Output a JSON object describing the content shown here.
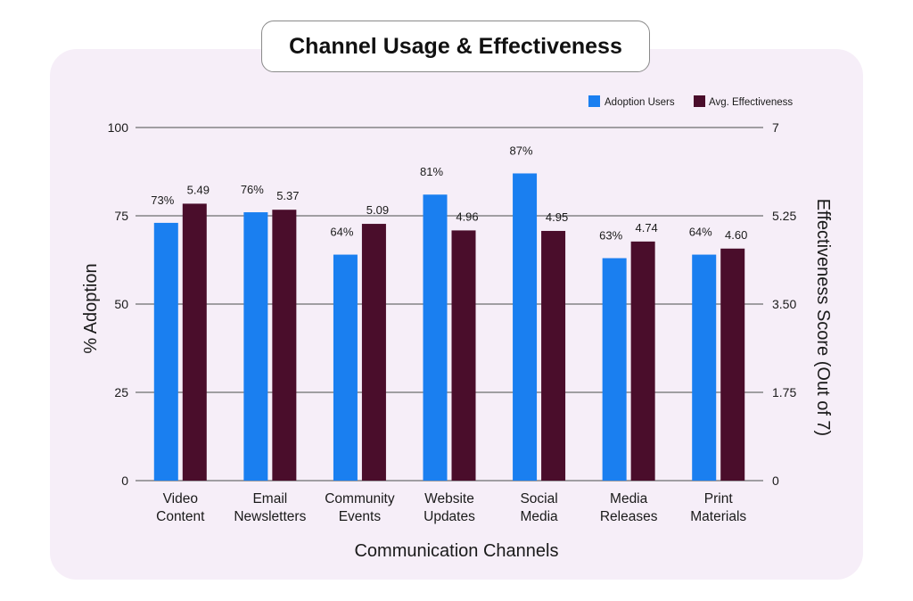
{
  "title": "Channel Usage & Effectiveness",
  "colors": {
    "adoption": "#1a7ff0",
    "effectiveness": "#4a0d2b",
    "panel": "#f6eef8"
  },
  "chart_data": {
    "type": "bar",
    "title": "Channel Usage & Effectiveness",
    "xlabel": "Communication Channels",
    "ylabel": "% Adoption",
    "y2label": "Effectiveness Score (Out of 7)",
    "categories": [
      [
        "Video",
        "Content"
      ],
      [
        "Email",
        "Newsletters"
      ],
      [
        "Community",
        "Events"
      ],
      [
        "Website",
        "Updates"
      ],
      [
        "Social",
        "Media"
      ],
      [
        "Media",
        "Releases"
      ],
      [
        "Print",
        "Materials"
      ]
    ],
    "series": [
      {
        "name": "Adoption Users",
        "axis": "left",
        "values": [
          73,
          76,
          64,
          81,
          87,
          63,
          64
        ],
        "labels": [
          "73%",
          "76%",
          "64%",
          "81%",
          "87%",
          "63%",
          "64%"
        ]
      },
      {
        "name": "Avg. Effectiveness",
        "axis": "right",
        "values": [
          5.49,
          5.37,
          5.09,
          4.96,
          4.95,
          4.74,
          4.6
        ],
        "labels": [
          "5.49",
          "5.37",
          "5.09",
          "4.96",
          "4.95",
          "4.74",
          "4.60"
        ]
      }
    ],
    "ylim": [
      0,
      100
    ],
    "y2lim": [
      0,
      7
    ],
    "yticks": [
      "0",
      "25",
      "50",
      "75",
      "100"
    ],
    "y2ticks": [
      "0",
      "1.75",
      "3.50",
      "5.25",
      "7"
    ],
    "grid": true,
    "legend_position": "top-right"
  }
}
